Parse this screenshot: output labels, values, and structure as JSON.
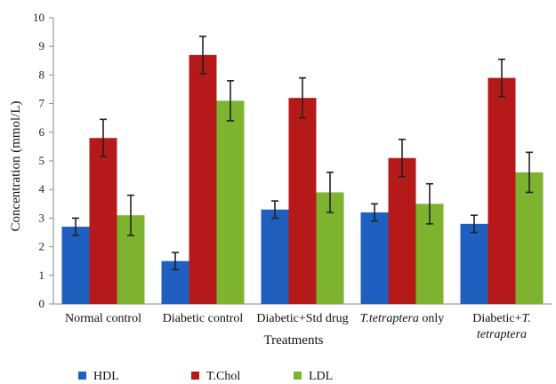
{
  "chart_data": {
    "type": "bar",
    "title": "",
    "xlabel": "Treatments",
    "ylabel": "Concentration (mmol/L)",
    "ylim": [
      0,
      10
    ],
    "yticks": [
      0,
      1,
      2,
      3,
      4,
      5,
      6,
      7,
      8,
      9,
      10
    ],
    "grid": false,
    "legend_position": "bottom",
    "categories": [
      [
        "Normal control"
      ],
      [
        "Diabetic control"
      ],
      [
        "Diabetic+Std drug"
      ],
      [
        "T.tetraptera only"
      ],
      [
        "Diabetic+T.",
        "tetraptera"
      ]
    ],
    "series": [
      {
        "name": "HDL",
        "color": "#1f5fbf",
        "values": [
          2.7,
          1.5,
          3.3,
          3.2,
          2.8
        ],
        "errors": [
          0.3,
          0.3,
          0.3,
          0.3,
          0.3
        ]
      },
      {
        "name": "T.Chol",
        "color": "#b5191a",
        "values": [
          5.8,
          8.7,
          7.2,
          5.1,
          7.9
        ],
        "errors": [
          0.65,
          0.65,
          0.7,
          0.65,
          0.65
        ]
      },
      {
        "name": "LDL",
        "color": "#7db32e",
        "values": [
          3.1,
          7.1,
          3.9,
          3.5,
          4.6
        ],
        "errors": [
          0.7,
          0.7,
          0.7,
          0.7,
          0.7
        ]
      }
    ]
  }
}
